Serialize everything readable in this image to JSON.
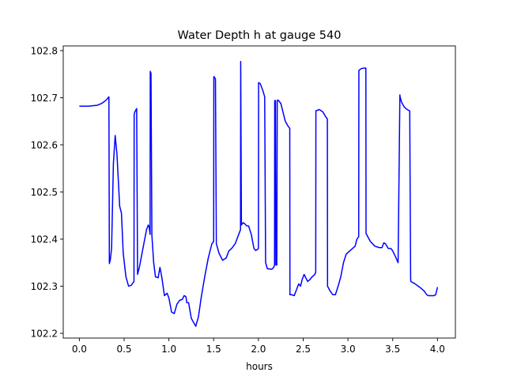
{
  "chart_data": {
    "type": "line",
    "title": "Water Depth h at gauge 540",
    "xlabel": "hours",
    "ylabel": "",
    "xlim": [
      -0.18,
      4.2
    ],
    "ylim": [
      102.19,
      102.81
    ],
    "grid": false,
    "x_ticks": [
      0.0,
      0.5,
      1.0,
      1.5,
      2.0,
      2.5,
      3.0,
      3.5,
      4.0
    ],
    "x_tick_labels": [
      "0.0",
      "0.5",
      "1.0",
      "1.5",
      "2.0",
      "2.5",
      "3.0",
      "3.5",
      "4.0"
    ],
    "y_ticks": [
      102.2,
      102.3,
      102.4,
      102.5,
      102.6,
      102.7,
      102.8
    ],
    "y_tick_labels": [
      "102.2",
      "102.3",
      "102.4",
      "102.5",
      "102.6",
      "102.7",
      "102.8"
    ],
    "series": [
      {
        "color": "#0000ff",
        "x": [
          0.0,
          0.1,
          0.2,
          0.25,
          0.3,
          0.33,
          0.335,
          0.345,
          0.36,
          0.38,
          0.4,
          0.42,
          0.45,
          0.47,
          0.49,
          0.52,
          0.55,
          0.58,
          0.61,
          0.612,
          0.62,
          0.64,
          0.65,
          0.67,
          0.7,
          0.73,
          0.75,
          0.77,
          0.78,
          0.79,
          0.792,
          0.8,
          0.81,
          0.83,
          0.85,
          0.88,
          0.9,
          0.92,
          0.95,
          0.98,
          1.0,
          1.03,
          1.06,
          1.09,
          1.12,
          1.15,
          1.17,
          1.19,
          1.2,
          1.22,
          1.25,
          1.27,
          1.3,
          1.33,
          1.36,
          1.4,
          1.44,
          1.48,
          1.5,
          1.502,
          1.52,
          1.53,
          1.56,
          1.6,
          1.64,
          1.67,
          1.7,
          1.74,
          1.78,
          1.8,
          1.802,
          1.81,
          1.83,
          1.85,
          1.87,
          1.89,
          1.92,
          1.95,
          1.97,
          1.99,
          2.0,
          2.002,
          2.02,
          2.05,
          2.07,
          2.08,
          2.1,
          2.15,
          2.17,
          2.18,
          2.182,
          2.19,
          2.195,
          2.205,
          2.21,
          2.212,
          2.22,
          2.25,
          2.3,
          2.33,
          2.35,
          2.352,
          2.37,
          2.4,
          2.42,
          2.43,
          2.45,
          2.47,
          2.49,
          2.51,
          2.55,
          2.58,
          2.6,
          2.63,
          2.64,
          2.642,
          2.68,
          2.72,
          2.75,
          2.77,
          2.772,
          2.8,
          2.83,
          2.86,
          2.89,
          2.92,
          2.95,
          2.98,
          3.02,
          3.05,
          3.08,
          3.1,
          3.12,
          3.122,
          3.15,
          3.18,
          3.2,
          3.202,
          3.25,
          3.3,
          3.35,
          3.38,
          3.4,
          3.42,
          3.45,
          3.48,
          3.5,
          3.53,
          3.56,
          3.58,
          3.582,
          3.6,
          3.63,
          3.66,
          3.69,
          3.7,
          3.702,
          3.75,
          3.8,
          3.85,
          3.88,
          3.9,
          3.93,
          3.96,
          3.98,
          4.0
        ],
        "y": [
          102.682,
          102.682,
          102.684,
          102.688,
          102.695,
          102.702,
          102.348,
          102.355,
          102.38,
          102.56,
          102.62,
          102.58,
          102.47,
          102.455,
          102.37,
          102.32,
          102.3,
          102.302,
          102.31,
          102.665,
          102.67,
          102.677,
          102.325,
          102.34,
          102.37,
          102.4,
          102.42,
          102.43,
          102.425,
          102.41,
          102.756,
          102.752,
          102.408,
          102.35,
          102.32,
          102.318,
          102.34,
          102.32,
          102.28,
          102.285,
          102.275,
          102.245,
          102.242,
          102.262,
          102.27,
          102.272,
          102.28,
          102.278,
          102.265,
          102.265,
          102.232,
          102.225,
          102.215,
          102.235,
          102.275,
          102.32,
          102.36,
          102.39,
          102.395,
          102.745,
          102.74,
          102.39,
          102.37,
          102.355,
          102.36,
          102.375,
          102.38,
          102.39,
          102.41,
          102.42,
          102.777,
          102.43,
          102.435,
          102.432,
          102.428,
          102.428,
          102.41,
          102.38,
          102.376,
          102.378,
          102.38,
          102.732,
          102.73,
          102.715,
          102.702,
          102.35,
          102.337,
          102.336,
          102.34,
          102.345,
          102.694,
          102.694,
          102.345,
          102.345,
          102.694,
          102.695,
          102.695,
          102.688,
          102.65,
          102.64,
          102.635,
          102.282,
          102.282,
          102.28,
          102.29,
          102.295,
          102.305,
          102.3,
          102.315,
          102.325,
          102.31,
          102.315,
          102.32,
          102.325,
          102.33,
          102.672,
          102.675,
          102.67,
          102.66,
          102.655,
          102.3,
          102.29,
          102.282,
          102.282,
          102.3,
          102.32,
          102.35,
          102.368,
          102.375,
          102.38,
          102.385,
          102.4,
          102.405,
          102.758,
          102.762,
          102.763,
          102.763,
          102.412,
          102.395,
          102.385,
          102.382,
          102.382,
          102.392,
          102.39,
          102.38,
          102.38,
          102.375,
          102.363,
          102.35,
          102.706,
          102.702,
          102.69,
          102.68,
          102.675,
          102.672,
          102.318,
          102.31,
          102.305,
          102.298,
          102.29,
          102.282,
          102.28,
          102.28,
          102.28,
          102.282,
          102.298
        ]
      }
    ]
  }
}
